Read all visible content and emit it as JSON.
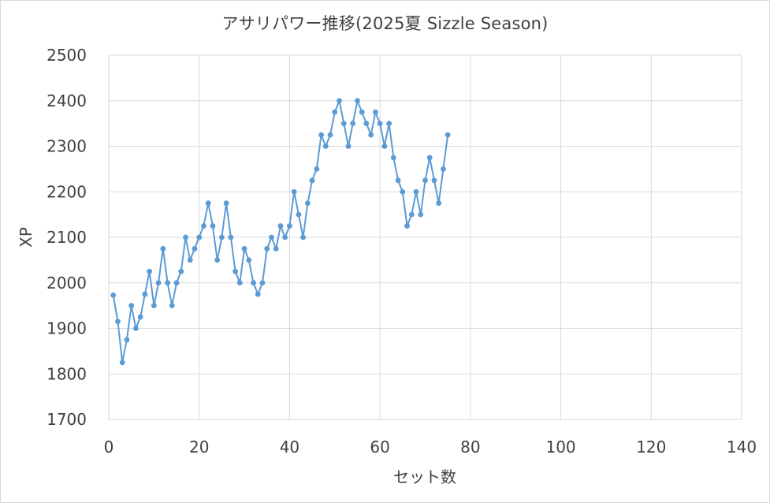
{
  "chart_data": {
    "type": "line",
    "title": "アサリパワー推移(2025夏 Sizzle Season)",
    "xlabel": "セット数",
    "ylabel": "XP",
    "xlim": [
      0,
      140
    ],
    "ylim": [
      1700,
      2500
    ],
    "x_ticks": [
      0,
      20,
      40,
      60,
      80,
      100,
      120,
      140
    ],
    "y_ticks": [
      1700,
      1800,
      1900,
      2000,
      2100,
      2200,
      2300,
      2400,
      2500
    ],
    "grid": true,
    "legend": "none",
    "series": [
      {
        "color": "#5b9bd5",
        "x": [
          1,
          2,
          3,
          4,
          5,
          6,
          7,
          8,
          9,
          10,
          11,
          12,
          13,
          14,
          15,
          16,
          17,
          18,
          19,
          20,
          21,
          22,
          23,
          24,
          25,
          26,
          27,
          28,
          29,
          30,
          31,
          32,
          33,
          34,
          35,
          36,
          37,
          38,
          39,
          40,
          41,
          42,
          43,
          44,
          45,
          46,
          47,
          48,
          49,
          50,
          51,
          52,
          53,
          54,
          55,
          56,
          57,
          58,
          59,
          60,
          61,
          62,
          63,
          64,
          65,
          66,
          67,
          68,
          69,
          70,
          71,
          72,
          73,
          74,
          75
        ],
        "values": [
          1973,
          1915,
          1825,
          1875,
          1950,
          1900,
          1925,
          1975,
          2025,
          1950,
          2000,
          2075,
          2000,
          1950,
          2000,
          2025,
          2100,
          2050,
          2075,
          2100,
          2125,
          2175,
          2125,
          2050,
          2100,
          2175,
          2100,
          2025,
          2000,
          2075,
          2050,
          2000,
          1975,
          2000,
          2075,
          2100,
          2075,
          2125,
          2100,
          2125,
          2200,
          2150,
          2100,
          2175,
          2225,
          2250,
          2325,
          2300,
          2325,
          2375,
          2400,
          2350,
          2300,
          2350,
          2400,
          2375,
          2350,
          2325,
          2375,
          2350,
          2300,
          2350,
          2275,
          2225,
          2200,
          2125,
          2150,
          2200,
          2150,
          2225,
          2275,
          2225,
          2175,
          2250,
          2325
        ]
      }
    ]
  }
}
